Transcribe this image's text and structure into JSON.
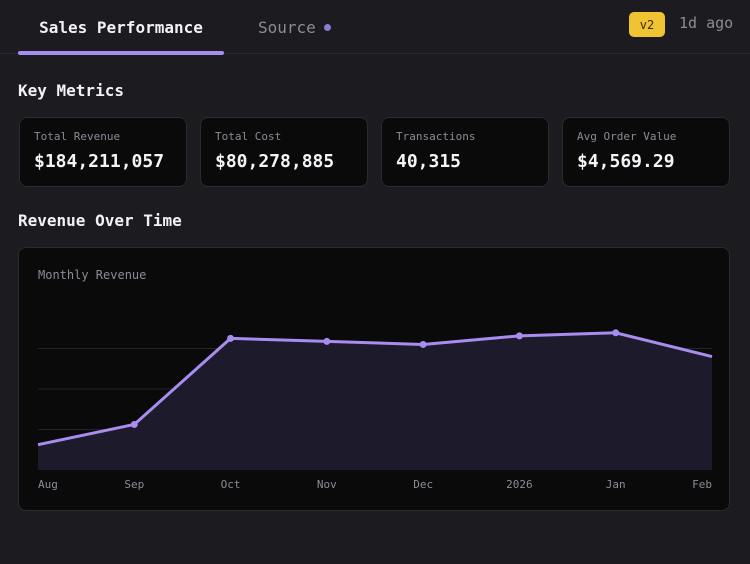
{
  "tabs": {
    "active_label": "Sales Performance",
    "source_label": "Source"
  },
  "header": {
    "version_badge": "v2",
    "updated": "1d ago"
  },
  "sections": {
    "key_metrics": "Key Metrics",
    "revenue_over_time": "Revenue Over Time"
  },
  "metrics": [
    {
      "label": "Total Revenue",
      "value": "$184,211,057"
    },
    {
      "label": "Total Cost",
      "value": "$80,278,885"
    },
    {
      "label": "Transactions",
      "value": "40,315"
    },
    {
      "label": "Avg Order Value",
      "value": "$4,569.29"
    }
  ],
  "colors": {
    "accent": "#a98cf0",
    "badge": "#f1c232",
    "background": "#1c1b20",
    "card": "#0a0a0b"
  },
  "chart_data": {
    "type": "area",
    "title": "Monthly Revenue",
    "categories": [
      "Aug",
      "Sep",
      "Oct",
      "Nov",
      "Dec",
      "2026",
      "Jan",
      "Feb"
    ],
    "values": [
      5.0,
      9.0,
      26.0,
      25.4,
      24.8,
      26.5,
      27.1,
      22.4
    ],
    "ylim": [
      0,
      32
    ],
    "grid": true,
    "y_ticks_shown": false,
    "line_color": "#a98cf0",
    "fill_color": "#1d1a2b"
  }
}
